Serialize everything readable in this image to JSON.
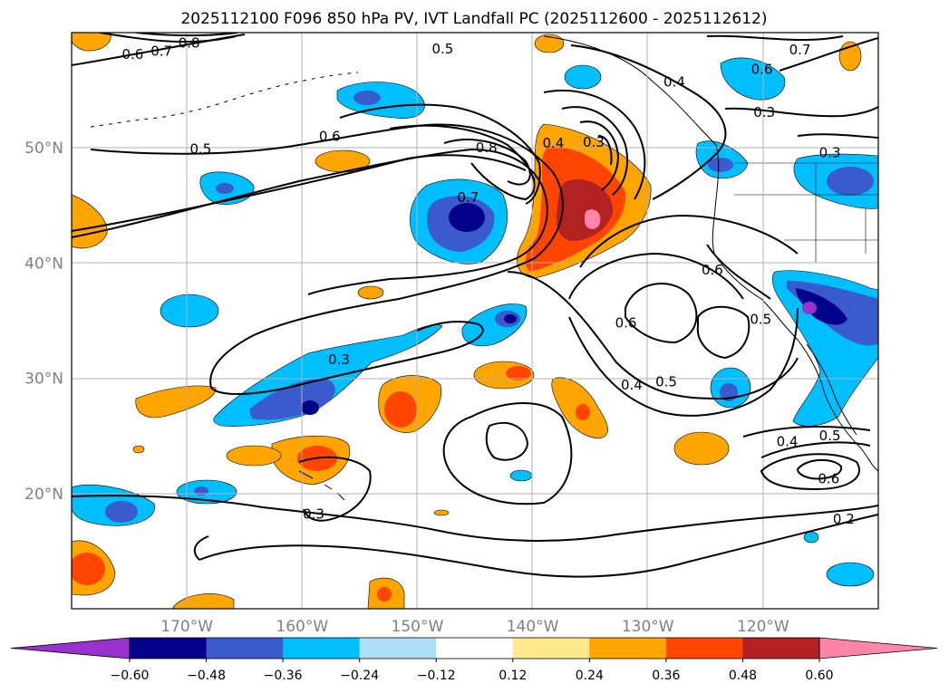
{
  "figure": {
    "title": "2025112100 F096 850 hPa PV, IVT Landfall PC (2025112600 - 2025112612)"
  },
  "map": {
    "lon_range": [
      -180,
      -110
    ],
    "lat_range": [
      10,
      60
    ],
    "lon_ticks": [
      {
        "value": -170,
        "label": "170°W"
      },
      {
        "value": -160,
        "label": "160°W"
      },
      {
        "value": -150,
        "label": "150°W"
      },
      {
        "value": -140,
        "label": "140°W"
      },
      {
        "value": -130,
        "label": "130°W"
      },
      {
        "value": -120,
        "label": "120°W"
      }
    ],
    "lat_ticks": [
      {
        "value": 20,
        "label": "20°N"
      },
      {
        "value": 30,
        "label": "30°N"
      },
      {
        "value": 40,
        "label": "40°N"
      },
      {
        "value": 50,
        "label": "50°N"
      }
    ],
    "gridlines": true
  },
  "colorbar": {
    "colors": [
      "#9932CC",
      "#00008B",
      "#3A5BCD",
      "#00BFFF",
      "#ADE0F7",
      "#FFFFFF",
      "#FFE98A",
      "#FFA500",
      "#FF4500",
      "#B22222",
      "#FF85A8"
    ],
    "tick_labels": [
      "−0.60",
      "−0.48",
      "−0.36",
      "−0.24",
      "−0.12",
      "0.12",
      "0.24",
      "0.36",
      "0.48",
      "0.60"
    ]
  },
  "contour_labels": [
    {
      "text": "0.8",
      "lon": -169.8,
      "lat": 59.1
    },
    {
      "text": "0.7",
      "lon": -172.2,
      "lat": 58.4
    },
    {
      "text": "0.6",
      "lon": -174.7,
      "lat": 58.1
    },
    {
      "text": "0.5",
      "lon": -147.8,
      "lat": 58.6
    },
    {
      "text": "0.7",
      "lon": -116.8,
      "lat": 58.5
    },
    {
      "text": "0.6",
      "lon": -120.1,
      "lat": 56.8
    },
    {
      "text": "0.4",
      "lon": -127.7,
      "lat": 55.7
    },
    {
      "text": "0.3",
      "lon": -119.9,
      "lat": 53.1
    },
    {
      "text": "0.5",
      "lon": -168.8,
      "lat": 49.9
    },
    {
      "text": "0.6",
      "lon": -157.6,
      "lat": 51.0
    },
    {
      "text": "0.8",
      "lon": -144.0,
      "lat": 50.0
    },
    {
      "text": "0.4",
      "lon": -138.2,
      "lat": 50.4
    },
    {
      "text": "0.3",
      "lon": -134.7,
      "lat": 50.5
    },
    {
      "text": "0.7",
      "lon": -145.6,
      "lat": 45.7
    },
    {
      "text": "0.3",
      "lon": -114.2,
      "lat": 49.6
    },
    {
      "text": "0.6",
      "lon": -124.4,
      "lat": 39.4
    },
    {
      "text": "0.6",
      "lon": -131.9,
      "lat": 34.8
    },
    {
      "text": "0.5",
      "lon": -120.2,
      "lat": 35.1
    },
    {
      "text": "0.3",
      "lon": -156.8,
      "lat": 31.6
    },
    {
      "text": "0.4",
      "lon": -131.4,
      "lat": 29.4
    },
    {
      "text": "0.5",
      "lon": -128.4,
      "lat": 29.7
    },
    {
      "text": "0.4",
      "lon": -117.9,
      "lat": 24.5
    },
    {
      "text": "0.5",
      "lon": -114.2,
      "lat": 25.0
    },
    {
      "text": "0.6",
      "lon": -114.3,
      "lat": 21.3
    },
    {
      "text": "0.3",
      "lon": -159.0,
      "lat": 18.2
    },
    {
      "text": "0.2",
      "lon": -113.0,
      "lat": 17.8
    }
  ]
}
